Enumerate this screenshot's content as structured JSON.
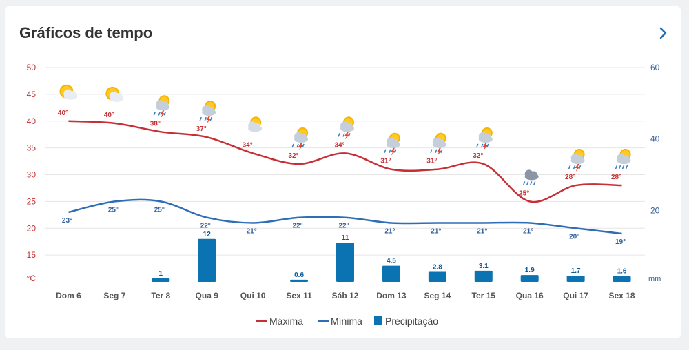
{
  "header": {
    "title": "Gráficos de tempo",
    "next_icon": "chevron-right-icon"
  },
  "colors": {
    "max": "#c62f35",
    "min": "#2f6eb5",
    "precip": "#0b73b2",
    "left_axis": "#c62f35",
    "right_axis": "#365f96"
  },
  "chart_data": {
    "type": "line",
    "categories": [
      "Dom 6",
      "Seg 7",
      "Ter 8",
      "Qua 9",
      "Qui 10",
      "Sex 11",
      "Sáb 12",
      "Dom 13",
      "Seg 14",
      "Ter 15",
      "Qua 16",
      "Qui 17",
      "Sex 18"
    ],
    "series": [
      {
        "name": "Máxima",
        "type": "line",
        "axis": "left",
        "values": [
          40,
          null,
          38,
          37,
          34,
          32,
          34,
          31,
          31,
          32,
          25,
          28,
          28
        ],
        "labels": [
          "40°",
          "40°",
          "38°",
          "37°",
          "34°",
          "32°",
          "34°",
          "31°",
          "31°",
          "32°",
          "25°",
          "28°",
          "28°"
        ]
      },
      {
        "name": "Mínima",
        "type": "line",
        "axis": "left",
        "values": [
          23,
          25,
          25,
          22,
          21,
          22,
          22,
          21,
          21,
          21,
          21,
          20,
          19
        ],
        "labels": [
          "23°",
          "25°",
          "25°",
          "22°",
          "21°",
          "22°",
          "22°",
          "21°",
          "21°",
          "21°",
          "21°",
          "20°",
          "19°"
        ]
      },
      {
        "name": "Precipitação",
        "type": "bar",
        "axis": "right",
        "values": [
          0,
          0,
          1,
          12,
          0,
          0.6,
          11,
          4.5,
          2.8,
          3.1,
          1.9,
          1.7,
          1.6
        ],
        "labels": [
          "",
          "",
          "1",
          "12",
          "",
          "0.6",
          "11",
          "4.5",
          "2.8",
          "3.1",
          "1.9",
          "1.7",
          "1.6"
        ]
      }
    ],
    "weather_icons": [
      "sun-cloud-icon",
      "sun-cloud-icon",
      "storm-sun-icon",
      "storm-sun-icon",
      "cloud-sun-icon",
      "storm-sun-icon",
      "storm-sun-icon",
      "storm-sun-icon",
      "storm-sun-icon",
      "storm-sun-icon",
      "rain-cloud-icon",
      "storm-sun-icon",
      "rain-sun-icon"
    ],
    "y_left": {
      "ticks": [
        "50",
        "45",
        "40",
        "35",
        "30",
        "25",
        "20",
        "15"
      ],
      "unit": "°C",
      "range": [
        10,
        50
      ]
    },
    "y_right": {
      "ticks": [
        "60",
        "40",
        "20"
      ],
      "unit": "mm",
      "range": [
        0,
        60
      ]
    },
    "grid": true,
    "legend": {
      "position": "bottom",
      "items": [
        "Máxima",
        "Mínima",
        "Precipitação"
      ]
    }
  }
}
